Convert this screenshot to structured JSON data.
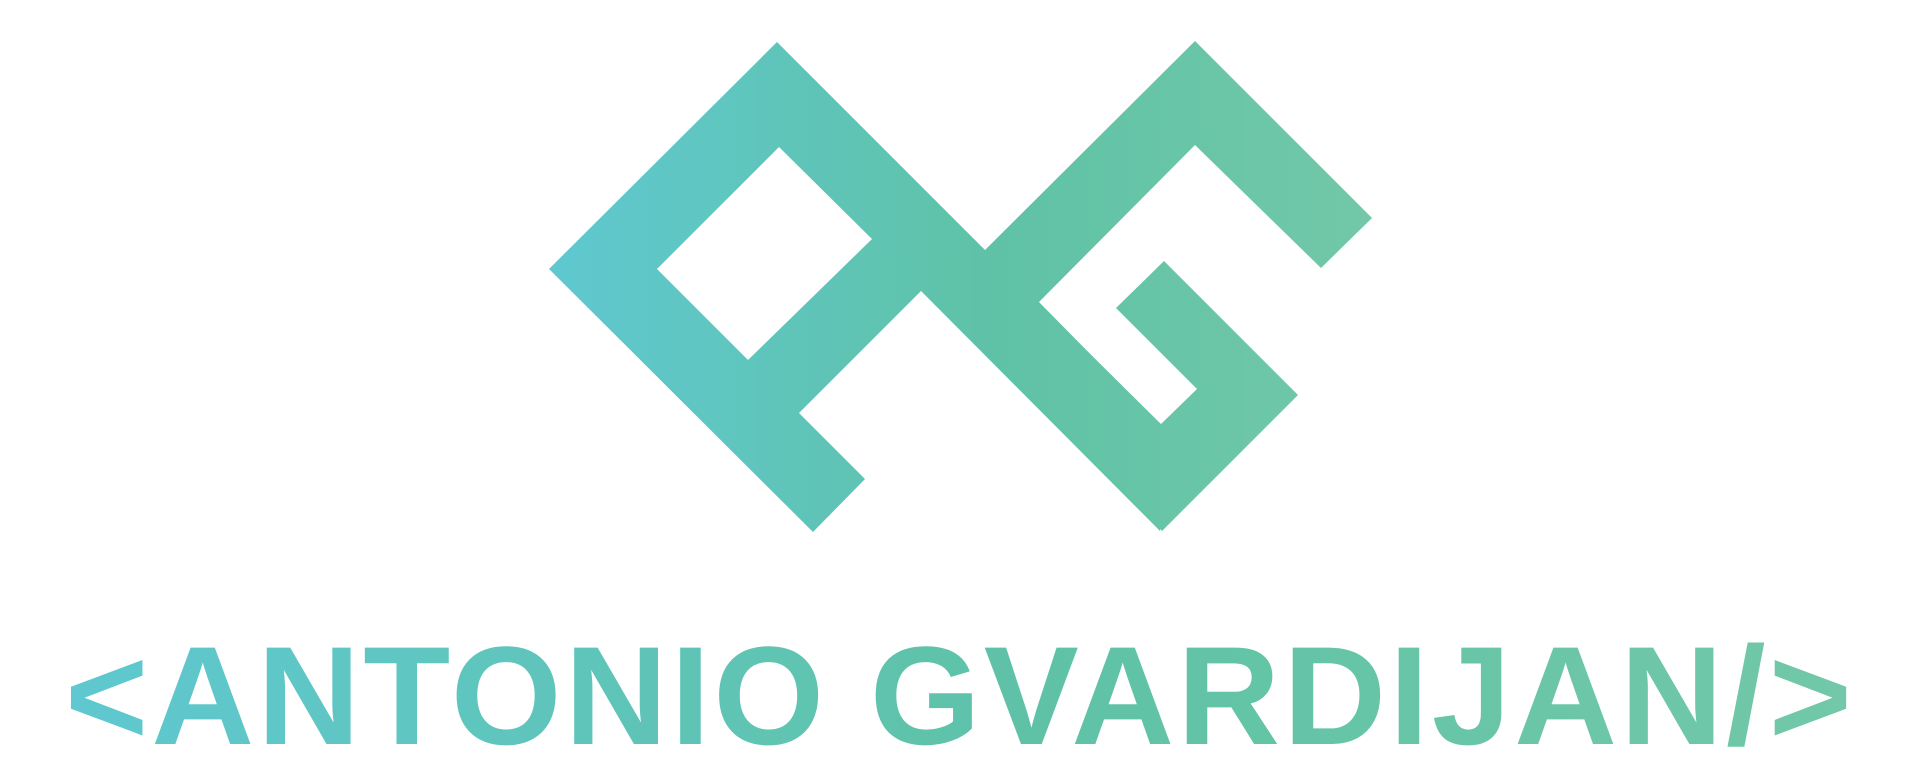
{
  "logo": {
    "monogram": "AG",
    "wordmark": "<ANTONIO GVARDIJAN/>"
  },
  "colors": {
    "gradient_start": "#5fc8d0",
    "gradient_mid": "#5fc2a6",
    "gradient_end": "#72c8a8",
    "background": "#ffffff"
  },
  "icons": {
    "mark": "ag-monogram-icon"
  }
}
